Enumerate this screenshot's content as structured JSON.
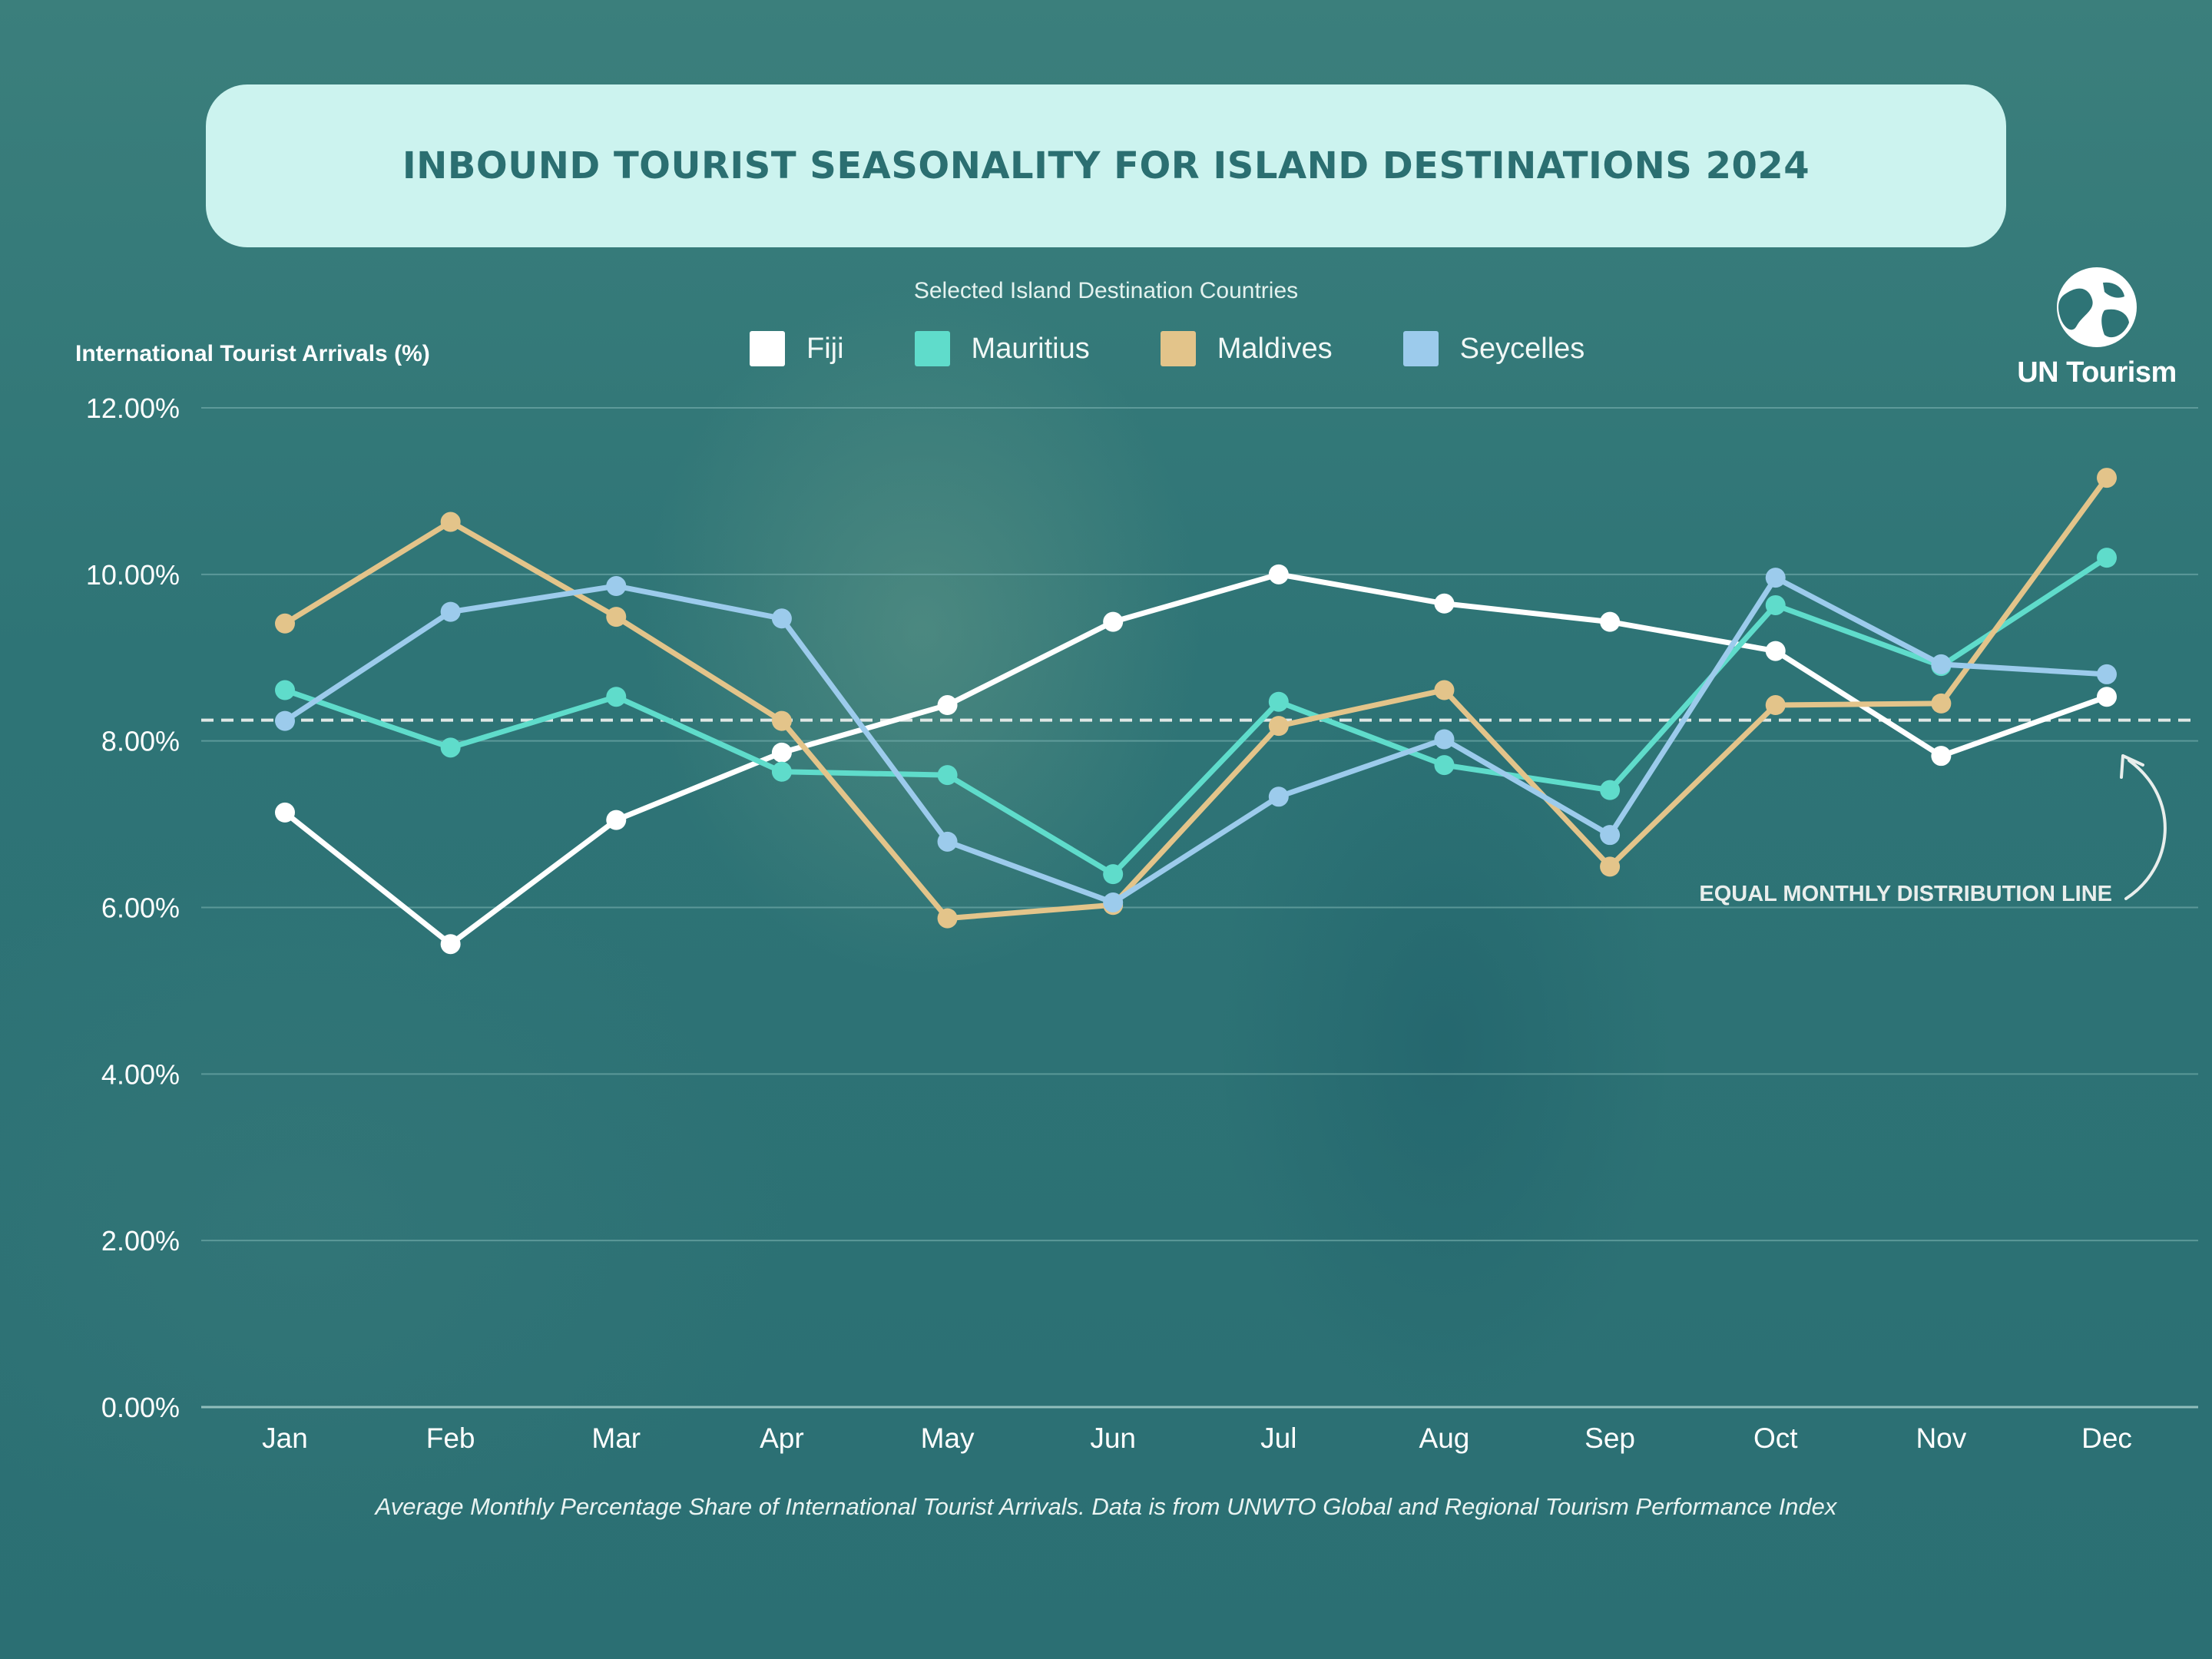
{
  "title": "INBOUND TOURIST SEASONALITY FOR ISLAND DESTINATIONS 2024",
  "legend_caption": "Selected Island Destination Countries",
  "logo": {
    "text": "UN Tourism",
    "icon": "globe-icon"
  },
  "footnote": "Average Monthly Percentage Share of International Tourist Arrivals. Data is from UNWTO Global and Regional Tourism Performance Index",
  "annotation": {
    "label": "EQUAL MONTHLY DISTRIBUTION LINE",
    "icon": "curved-arrow-icon"
  },
  "colors": {
    "background": "#2c7173",
    "gridline": "#6fa9a8",
    "reference_line": "#dfe7e5"
  },
  "chart_data": {
    "type": "line",
    "ylabel": "International Tourist Arrivals (%)",
    "xlabel": "",
    "ylim": [
      0,
      12
    ],
    "yticks": [
      0,
      2,
      4,
      6,
      8,
      10,
      12
    ],
    "ytick_labels": [
      "0.00%",
      "2.00%",
      "4.00%",
      "6.00%",
      "8.00%",
      "10.00%",
      "12.00%"
    ],
    "grid": true,
    "legend_position": "top-center",
    "categories": [
      "Jan",
      "Feb",
      "Mar",
      "Apr",
      "May",
      "Jun",
      "Jul",
      "Aug",
      "Sep",
      "Oct",
      "Nov",
      "Dec"
    ],
    "reference_line": {
      "value": 8.25,
      "style": "dashed"
    },
    "series": [
      {
        "name": "Fiji",
        "color": "#ffffff",
        "values": [
          7.14,
          5.56,
          7.05,
          7.86,
          8.43,
          9.43,
          10.0,
          9.65,
          9.43,
          9.08,
          7.82,
          8.53
        ]
      },
      {
        "name": "Mauritius",
        "color": "#5fdccb",
        "values": [
          8.61,
          7.92,
          8.53,
          7.63,
          7.59,
          6.4,
          8.47,
          7.71,
          7.41,
          9.63,
          8.9,
          10.2
        ]
      },
      {
        "name": "Maldives",
        "color": "#e3c48a",
        "values": [
          9.41,
          10.63,
          9.49,
          8.24,
          5.87,
          6.03,
          8.18,
          8.61,
          6.49,
          8.43,
          8.45,
          11.16
        ]
      },
      {
        "name": "Seycelles",
        "color": "#9ccbec",
        "values": [
          8.24,
          9.55,
          9.86,
          9.47,
          6.79,
          6.06,
          7.33,
          8.02,
          6.87,
          9.96,
          8.92,
          8.8
        ]
      }
    ]
  }
}
